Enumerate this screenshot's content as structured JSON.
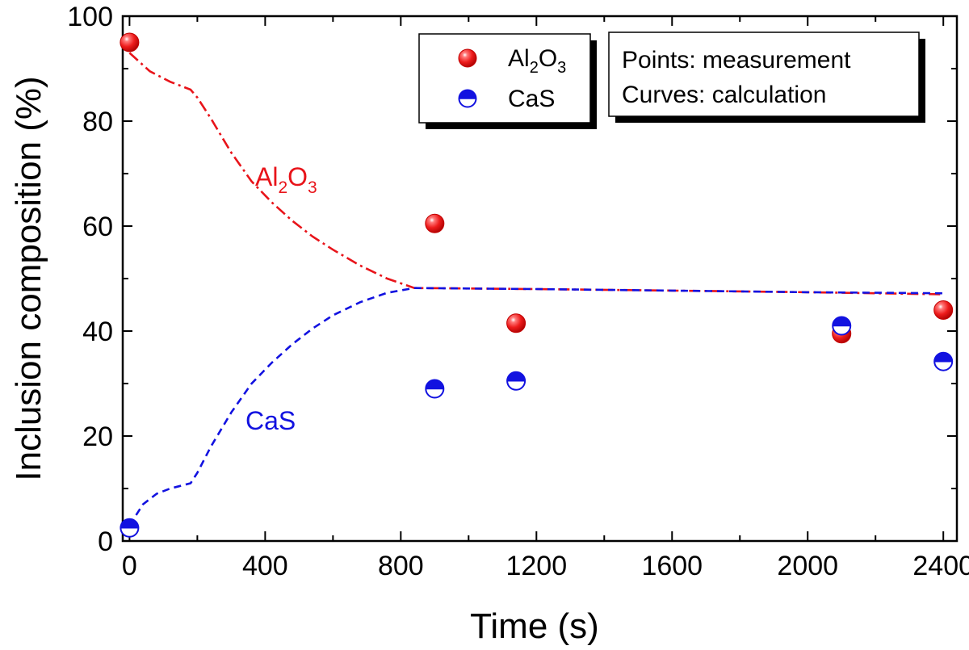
{
  "chart_data": {
    "type": "scatter",
    "xlabel": "Time (s)",
    "ylabel": "Inclusion composition (%)",
    "xlim": [
      -20,
      2440
    ],
    "ylim": [
      0,
      100
    ],
    "x_ticks": [
      0,
      400,
      800,
      1200,
      1600,
      2000,
      2400
    ],
    "y_ticks": [
      0,
      20,
      40,
      60,
      80,
      100
    ],
    "x_tick_labels": [
      "0",
      "400",
      "800",
      "1200",
      "1600",
      "2000",
      "2400"
    ],
    "y_tick_labels": [
      "0",
      "20",
      "40",
      "60",
      "80",
      "100"
    ],
    "series": [
      {
        "name": "Al2O3",
        "label_base": "Al",
        "label_sub1": "2",
        "label_mid": "O",
        "label_sub2": "3",
        "kind": "measurement",
        "color": "#e8141a",
        "x": [
          0,
          900,
          1140,
          2100,
          2400
        ],
        "y": [
          95,
          60.5,
          41.5,
          39.5,
          44
        ]
      },
      {
        "name": "CaS",
        "kind": "measurement",
        "color": "#1212e0",
        "x": [
          0,
          900,
          1140,
          2100,
          2400
        ],
        "y": [
          2.5,
          29,
          30.5,
          41,
          34.2
        ]
      }
    ],
    "curves": [
      {
        "name": "Al2O3",
        "kind": "calculation",
        "style": "dash-dot",
        "color": "#e8141a",
        "x": [
          0,
          60,
          120,
          180,
          200,
          240,
          300,
          360,
          420,
          480,
          540,
          600,
          680,
          760,
          840,
          1000,
          1200,
          1600,
          2000,
          2400
        ],
        "y": [
          93,
          89.5,
          87.5,
          86,
          84.5,
          80.5,
          74,
          68.5,
          64.5,
          61,
          58,
          55.5,
          52.5,
          50,
          48.2,
          48.1,
          48,
          47.7,
          47.4,
          47
        ]
      },
      {
        "name": "CaS",
        "kind": "calculation",
        "style": "dashed",
        "color": "#1212e0",
        "x": [
          0,
          40,
          80,
          120,
          180,
          200,
          240,
          300,
          360,
          420,
          480,
          540,
          600,
          680,
          760,
          840,
          1000,
          1200,
          1600,
          2000,
          2400
        ],
        "y": [
          3,
          7,
          9,
          10,
          11,
          13,
          18,
          24.5,
          30,
          34,
          37.5,
          40.5,
          43,
          45.5,
          47.3,
          48.2,
          48.1,
          48,
          47.7,
          47.4,
          47.2
        ]
      }
    ],
    "curve_labels": [
      {
        "series": "Al2O3",
        "base": "Al",
        "sub1": "2",
        "mid": "O",
        "sub2": "3",
        "color": "#e8141a"
      },
      {
        "series": "CaS",
        "text": "CaS",
        "color": "#1212e0"
      }
    ],
    "legend": {
      "position": "top-right",
      "entries": [
        {
          "base": "Al",
          "sub1": "2",
          "mid": "O",
          "sub2": "3",
          "marker": "solid-sphere",
          "color": "#e8141a"
        },
        {
          "text": "CaS",
          "marker": "half-filled",
          "color": "#1212e0"
        }
      ]
    },
    "note": {
      "line1": "Points: measurement",
      "line2": "Curves: calculation"
    }
  }
}
